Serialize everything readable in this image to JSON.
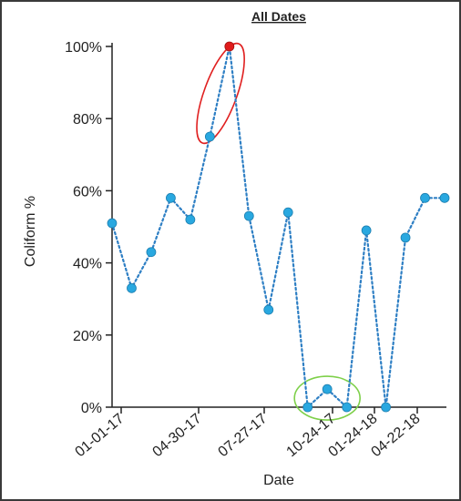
{
  "chart_data": {
    "type": "line",
    "title": "All Dates",
    "xlabel": "Date",
    "ylabel": "Coliform %",
    "ylim": [
      0,
      100
    ],
    "y_ticks": [
      0,
      20,
      40,
      60,
      80,
      100
    ],
    "y_tick_labels": [
      "0%",
      "20%",
      "40%",
      "60%",
      "80%",
      "100%"
    ],
    "x_tick_labels": [
      "01-01-17",
      "04-30-17",
      "07-27-17",
      "10-24-17",
      "01-24-18",
      "04-22-18"
    ],
    "grid": false,
    "series": [
      {
        "values": [
          51,
          33,
          43,
          58,
          52,
          75,
          100,
          53,
          27,
          54,
          0,
          5,
          0,
          49,
          0,
          47,
          58,
          58
        ],
        "highlight_index": 6
      }
    ],
    "annotations": [
      {
        "type": "ellipse",
        "around_points": [
          5,
          6
        ],
        "color": "#e02020"
      },
      {
        "type": "ellipse",
        "around_points": [
          10,
          11,
          12
        ],
        "color": "#7ed04a"
      }
    ],
    "colors": {
      "line": "#2e7fc4",
      "marker": "#29a8e0",
      "marker_highlight": "#e01b1b",
      "axis": "#222222"
    }
  }
}
